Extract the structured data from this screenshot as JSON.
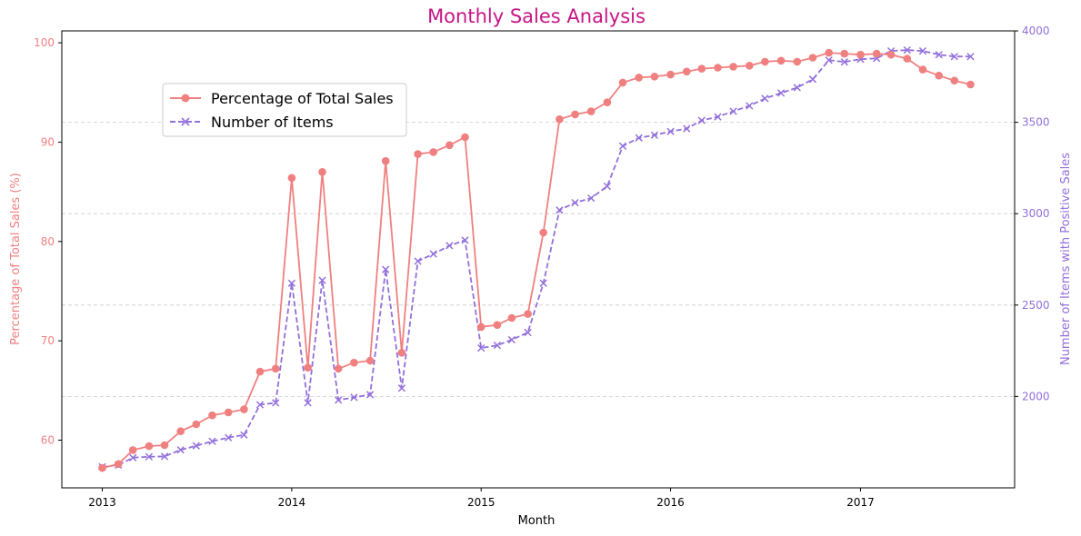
{
  "chart_data": {
    "type": "line",
    "title": "Monthly Sales Analysis",
    "xlabel": "Month",
    "ylabel_left": "Percentage of Total Sales (%)",
    "ylabel_right": "Number of Items with Positive Sales",
    "x_ticks": [
      "2013",
      "2014",
      "2015",
      "2016",
      "2017"
    ],
    "y_left_ticks": [
      60,
      70,
      80,
      90,
      100
    ],
    "y_right_ticks": [
      2000,
      2500,
      3000,
      3500,
      4000
    ],
    "ylim_left": [
      55.2,
      101.2
    ],
    "ylim_right": [
      1500,
      4000
    ],
    "xlim": [
      "2012-10-15",
      "2017-10-25"
    ],
    "grid": "horizontal dashed",
    "legend_position": "upper-left",
    "x": [
      "2013-01",
      "2013-02",
      "2013-03",
      "2013-04",
      "2013-05",
      "2013-06",
      "2013-07",
      "2013-08",
      "2013-09",
      "2013-10",
      "2013-11",
      "2013-12",
      "2014-01",
      "2014-02",
      "2014-03",
      "2014-04",
      "2014-05",
      "2014-06",
      "2014-07",
      "2014-08",
      "2014-09",
      "2014-10",
      "2014-11",
      "2014-12",
      "2015-01",
      "2015-02",
      "2015-03",
      "2015-04",
      "2015-05",
      "2015-06",
      "2015-07",
      "2015-08",
      "2015-09",
      "2015-10",
      "2015-11",
      "2015-12",
      "2016-01",
      "2016-02",
      "2016-03",
      "2016-04",
      "2016-05",
      "2016-06",
      "2016-07",
      "2016-08",
      "2016-09",
      "2016-10",
      "2016-11",
      "2016-12",
      "2017-01",
      "2017-02",
      "2017-03",
      "2017-04",
      "2017-05",
      "2017-06",
      "2017-07",
      "2017-08"
    ],
    "series": [
      {
        "name": "Percentage of Total Sales",
        "axis": "left",
        "color": "#f08080",
        "marker": "circle",
        "linestyle": "solid",
        "values": [
          57.2,
          57.6,
          59.0,
          59.4,
          59.5,
          60.9,
          61.6,
          62.5,
          62.8,
          63.1,
          66.9,
          67.2,
          86.4,
          67.3,
          87.0,
          67.2,
          67.8,
          68.0,
          88.1,
          68.8,
          88.8,
          89.0,
          89.7,
          90.5,
          71.4,
          71.6,
          72.3,
          72.7,
          80.9,
          92.3,
          92.8,
          93.1,
          94.0,
          96.0,
          96.5,
          96.6,
          96.8,
          97.1,
          97.4,
          97.5,
          97.6,
          97.7,
          98.1,
          98.2,
          98.1,
          98.5,
          99.0,
          98.9,
          98.8,
          98.9,
          98.8,
          98.4,
          97.3,
          96.7,
          96.2,
          95.8
        ]
      },
      {
        "name": "Number of Items",
        "axis": "right",
        "color": "#9370db",
        "marker": "x",
        "linestyle": "dashed",
        "values": [
          1615,
          1625,
          1665,
          1670,
          1672,
          1708,
          1730,
          1755,
          1775,
          1790,
          1955,
          1965,
          2620,
          1965,
          2635,
          1980,
          1995,
          2010,
          2695,
          2045,
          2740,
          2780,
          2825,
          2855,
          2265,
          2280,
          2310,
          2350,
          2620,
          3020,
          3060,
          3085,
          3150,
          3370,
          3415,
          3430,
          3450,
          3465,
          3510,
          3530,
          3560,
          3590,
          3630,
          3660,
          3690,
          3735,
          3840,
          3830,
          3845,
          3850,
          3890,
          3895,
          3890,
          3870,
          3860,
          3860
        ]
      }
    ]
  }
}
